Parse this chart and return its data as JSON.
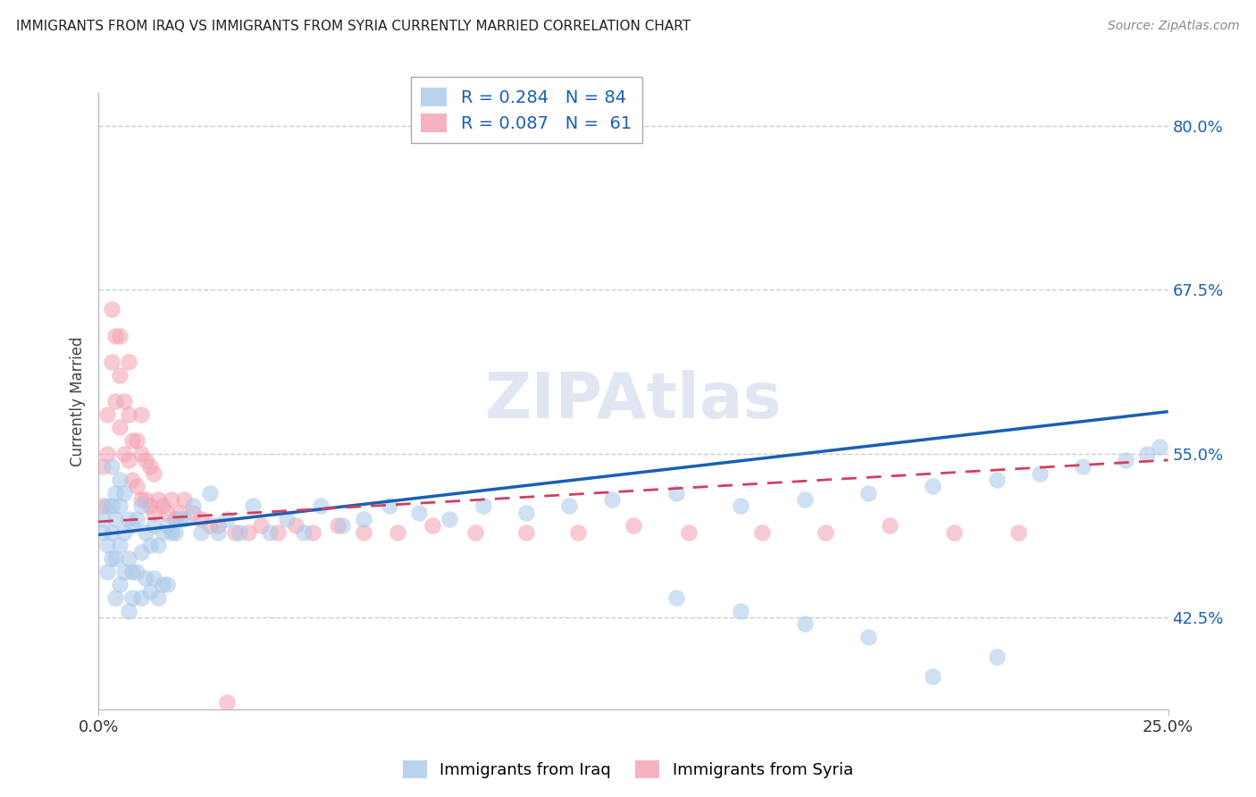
{
  "title": "IMMIGRANTS FROM IRAQ VS IMMIGRANTS FROM SYRIA CURRENTLY MARRIED CORRELATION CHART",
  "source": "Source: ZipAtlas.com",
  "ylabel": "Currently Married",
  "xlim": [
    0.0,
    0.25
  ],
  "ylim": [
    0.355,
    0.825
  ],
  "yticks": [
    0.425,
    0.55,
    0.675,
    0.8
  ],
  "ytick_labels": [
    "42.5%",
    "55.0%",
    "67.5%",
    "80.0%"
  ],
  "xticks": [
    0.0,
    0.25
  ],
  "xtick_labels": [
    "0.0%",
    "25.0%"
  ],
  "iraq_color": "#a8c8e8",
  "syria_color": "#f4a0b0",
  "iraq_line_color": "#1a5fb4",
  "syria_line_color": "#d04060",
  "watermark": "ZIPAtlas",
  "iraq_x": [
    0.001,
    0.001,
    0.002,
    0.002,
    0.002,
    0.003,
    0.003,
    0.003,
    0.003,
    0.004,
    0.004,
    0.004,
    0.004,
    0.005,
    0.005,
    0.005,
    0.005,
    0.006,
    0.006,
    0.006,
    0.007,
    0.007,
    0.007,
    0.008,
    0.008,
    0.008,
    0.009,
    0.009,
    0.01,
    0.01,
    0.01,
    0.011,
    0.011,
    0.012,
    0.012,
    0.013,
    0.013,
    0.014,
    0.014,
    0.015,
    0.015,
    0.016,
    0.016,
    0.017,
    0.018,
    0.019,
    0.02,
    0.022,
    0.024,
    0.026,
    0.028,
    0.03,
    0.033,
    0.036,
    0.04,
    0.044,
    0.048,
    0.052,
    0.057,
    0.062,
    0.068,
    0.075,
    0.082,
    0.09,
    0.1,
    0.11,
    0.12,
    0.135,
    0.15,
    0.165,
    0.18,
    0.195,
    0.21,
    0.22,
    0.23,
    0.24,
    0.245,
    0.248,
    0.21,
    0.195,
    0.18,
    0.165,
    0.15,
    0.135
  ],
  "iraq_y": [
    0.49,
    0.5,
    0.48,
    0.51,
    0.46,
    0.49,
    0.51,
    0.54,
    0.47,
    0.5,
    0.52,
    0.44,
    0.47,
    0.45,
    0.48,
    0.51,
    0.53,
    0.46,
    0.49,
    0.52,
    0.43,
    0.47,
    0.5,
    0.46,
    0.495,
    0.44,
    0.46,
    0.5,
    0.44,
    0.475,
    0.51,
    0.455,
    0.49,
    0.445,
    0.48,
    0.455,
    0.495,
    0.44,
    0.48,
    0.45,
    0.49,
    0.45,
    0.495,
    0.49,
    0.49,
    0.5,
    0.5,
    0.51,
    0.49,
    0.52,
    0.49,
    0.5,
    0.49,
    0.51,
    0.49,
    0.5,
    0.49,
    0.51,
    0.495,
    0.5,
    0.51,
    0.505,
    0.5,
    0.51,
    0.505,
    0.51,
    0.515,
    0.52,
    0.51,
    0.515,
    0.52,
    0.525,
    0.53,
    0.535,
    0.54,
    0.545,
    0.55,
    0.555,
    0.395,
    0.38,
    0.41,
    0.42,
    0.43,
    0.44
  ],
  "syria_x": [
    0.001,
    0.001,
    0.002,
    0.002,
    0.003,
    0.003,
    0.004,
    0.004,
    0.005,
    0.005,
    0.005,
    0.006,
    0.006,
    0.007,
    0.007,
    0.007,
    0.008,
    0.008,
    0.009,
    0.009,
    0.01,
    0.01,
    0.01,
    0.011,
    0.011,
    0.012,
    0.012,
    0.013,
    0.013,
    0.014,
    0.015,
    0.016,
    0.017,
    0.018,
    0.019,
    0.02,
    0.022,
    0.024,
    0.026,
    0.028,
    0.03,
    0.032,
    0.035,
    0.038,
    0.042,
    0.046,
    0.05,
    0.056,
    0.062,
    0.07,
    0.078,
    0.088,
    0.1,
    0.112,
    0.125,
    0.138,
    0.155,
    0.17,
    0.185,
    0.2,
    0.215
  ],
  "syria_y": [
    0.51,
    0.54,
    0.55,
    0.58,
    0.62,
    0.66,
    0.59,
    0.64,
    0.57,
    0.61,
    0.64,
    0.55,
    0.59,
    0.545,
    0.58,
    0.62,
    0.53,
    0.56,
    0.525,
    0.56,
    0.515,
    0.55,
    0.58,
    0.515,
    0.545,
    0.51,
    0.54,
    0.505,
    0.535,
    0.515,
    0.51,
    0.505,
    0.515,
    0.5,
    0.505,
    0.515,
    0.505,
    0.5,
    0.495,
    0.495,
    0.36,
    0.49,
    0.49,
    0.495,
    0.49,
    0.495,
    0.49,
    0.495,
    0.49,
    0.49,
    0.495,
    0.49,
    0.49,
    0.49,
    0.495,
    0.49,
    0.49,
    0.49,
    0.495,
    0.49,
    0.49
  ],
  "iraq_trend_x0": 0.0,
  "iraq_trend_y0": 0.488,
  "iraq_trend_x1": 0.25,
  "iraq_trend_y1": 0.582,
  "syria_trend_x0": 0.0,
  "syria_trend_y0": 0.498,
  "syria_trend_x1": 0.25,
  "syria_trend_y1": 0.545
}
